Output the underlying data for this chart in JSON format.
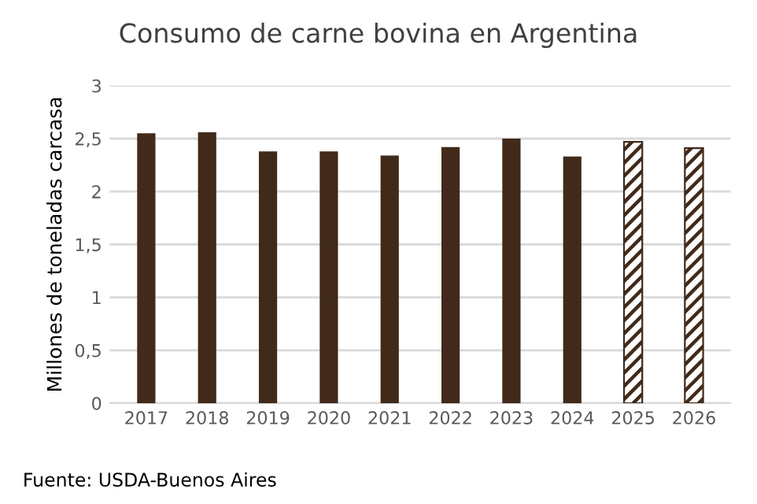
{
  "chart_data": {
    "type": "bar",
    "title": "Consumo de carne bovina en Argentina",
    "ylabel": "Millones de toneladas carcasa",
    "categories": [
      "2017",
      "2018",
      "2019",
      "2020",
      "2021",
      "2022",
      "2023",
      "2024",
      "2025",
      "2026"
    ],
    "series": [
      {
        "color": "#412a1a",
        "values": [
          2.55,
          2.56,
          2.38,
          2.38,
          2.34,
          2.42,
          2.5,
          2.33,
          null,
          null
        ]
      },
      {
        "color": "#412a1a",
        "values": [
          null,
          null,
          null,
          null,
          null,
          null,
          null,
          null,
          2.47,
          2.41
        ]
      }
    ],
    "ylim": [
      0,
      3
    ],
    "yticks": [
      0,
      {
        "value": 0.5,
        "label": "0,5"
      },
      1,
      {
        "value": 1.5,
        "label": "1,5"
      },
      2,
      {
        "value": 2.5,
        "label": "2,5"
      },
      3
    ],
    "grid": "y",
    "annotations": [
      "Fuente: USDA-Buenos Aires"
    ]
  }
}
